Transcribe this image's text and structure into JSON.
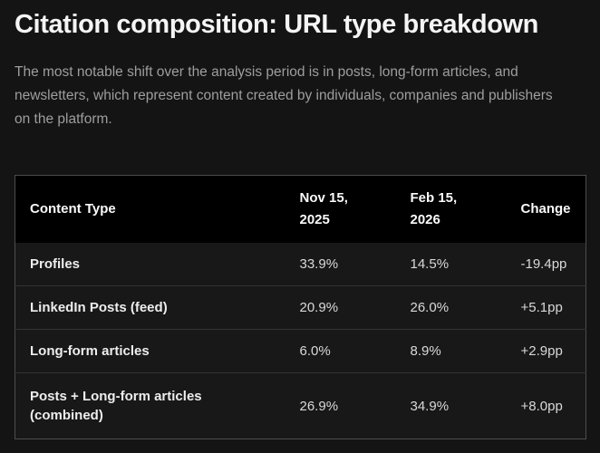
{
  "page": {
    "title": "Citation composition: URL type breakdown",
    "description": "The most notable shift over the analysis period is in posts, long-form articles, and newsletters, which represent content created by individuals, companies and publishers on the platform."
  },
  "table": {
    "columns": [
      "Content Type",
      "Nov 15, 2025",
      "Feb 15, 2026",
      "Change"
    ],
    "rows": [
      [
        "Profiles",
        "33.9%",
        "14.5%",
        "-19.4pp"
      ],
      [
        "LinkedIn Posts (feed)",
        "20.9%",
        "26.0%",
        "+5.1pp"
      ],
      [
        "Long-form articles",
        "6.0%",
        "8.9%",
        "+2.9pp"
      ],
      [
        "Posts + Long-form articles (combined)",
        "26.9%",
        "34.9%",
        "+8.0pp"
      ]
    ]
  },
  "colors": {
    "page-bg": "#141414",
    "header-bg": "#000000",
    "row-bg": "#181818",
    "outer-border": "#4d4d4d",
    "row-divider": "#333333",
    "title-text": "#f5f5f5",
    "muted-text": "#9e9e9e",
    "header-text": "#fafafa",
    "label-text": "#ededed",
    "value-text": "#d9d9d9"
  }
}
